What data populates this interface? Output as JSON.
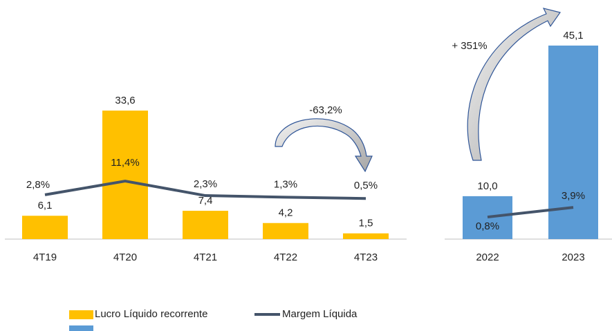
{
  "chart_data": [
    {
      "type": "bar",
      "categories": [
        "4T19",
        "4T20",
        "4T21",
        "4T22",
        "4T23"
      ],
      "series": [
        {
          "name": "Lucro Líquido recorrente",
          "color": "#FFC000",
          "values": [
            6.1,
            33.6,
            7.4,
            4.2,
            1.5
          ],
          "value_labels": [
            "6,1",
            "33,6",
            "7,4",
            "4,2",
            "1,5"
          ]
        },
        {
          "name": "Margem Líquida",
          "type": "line",
          "axis": "y2",
          "color": "#44546A",
          "values": [
            2.8,
            11.4,
            2.3,
            1.3,
            0.5
          ],
          "value_labels": [
            "2,8%",
            "11,4%",
            "2,3%",
            "1,3%",
            "0,5%"
          ]
        }
      ],
      "ylim": [
        0,
        40
      ],
      "y2lim": [
        -25,
        71
      ],
      "annotation": "-63,2%",
      "legend": "bottom"
    },
    {
      "type": "bar",
      "categories": [
        "2022",
        "2023"
      ],
      "series": [
        {
          "color": "#5B9BD5",
          "values": [
            10.0,
            45.1
          ],
          "value_labels": [
            "10,0",
            "45,1"
          ]
        },
        {
          "type": "line",
          "axis": "y2",
          "color": "#44546A",
          "values": [
            0.8,
            3.9
          ],
          "value_labels": [
            "0,8%",
            "3,9%"
          ]
        }
      ],
      "ylim": [
        0,
        50
      ],
      "y2lim": [
        -6.3,
        62.7
      ],
      "annotation": "+ 351%"
    }
  ]
}
